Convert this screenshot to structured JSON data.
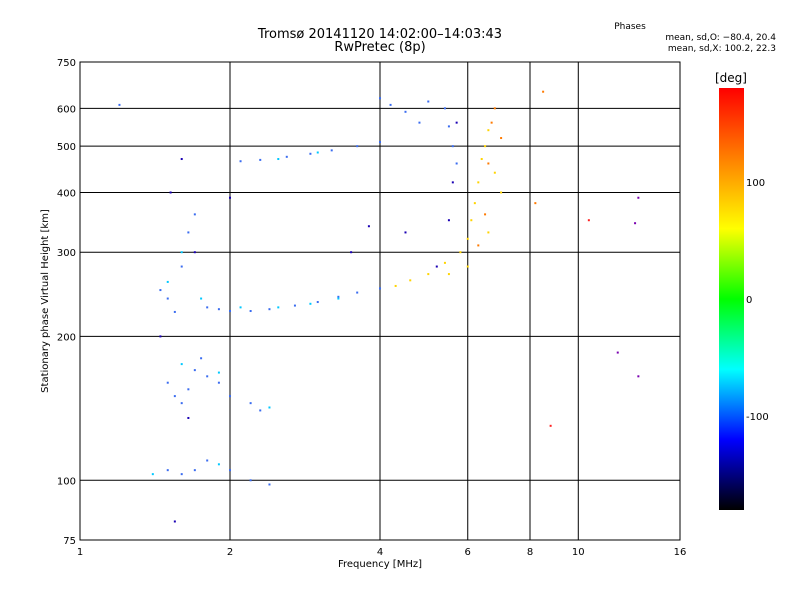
{
  "header": {
    "title_line1": "Tromsø 20141120 14:02:00–14:03:43",
    "title_line2": "RwPretec (8p)",
    "stats_title": "Phases",
    "stats_o": "mean, sd,O: −80.4, 20.4",
    "stats_x": "mean, sd,X: 100.2, 22.3"
  },
  "chart_data": {
    "type": "scatter",
    "xlabel": "Frequency [MHz]",
    "ylabel": "Stationary phase Virtual Height [km]",
    "x_scale": "log",
    "y_scale": "log",
    "xlim": [
      1,
      16
    ],
    "ylim": [
      75,
      750
    ],
    "x_ticks": [
      1,
      2,
      4,
      6,
      8,
      10,
      16
    ],
    "y_ticks": [
      75,
      100,
      200,
      300,
      400,
      500,
      600,
      750
    ],
    "x_grid": [
      2,
      4,
      6,
      8,
      10
    ],
    "y_grid": [
      100,
      200,
      300,
      400,
      500,
      600
    ],
    "colorbar": {
      "label": "[deg]",
      "range": [
        -180,
        180
      ],
      "ticks": [
        100,
        0,
        -100
      ],
      "colors_top_to_bottom": [
        "#ff0000",
        "#ff8000",
        "#ffff00",
        "#00ff00",
        "#00ffff",
        "#0000ff",
        "#000000"
      ]
    },
    "series": [
      {
        "color": "#3a6cf0",
        "points": [
          [
            1.2,
            610
          ],
          [
            1.45,
            250
          ],
          [
            1.5,
            240
          ],
          [
            1.55,
            225
          ],
          [
            1.6,
            280
          ],
          [
            1.65,
            330
          ],
          [
            1.7,
            360
          ],
          [
            1.8,
            230
          ],
          [
            1.9,
            228
          ],
          [
            2.0,
            226
          ],
          [
            2.2,
            226
          ],
          [
            2.4,
            228
          ],
          [
            2.7,
            232
          ],
          [
            3.0,
            236
          ],
          [
            3.3,
            242
          ],
          [
            3.6,
            247
          ],
          [
            4.0,
            252
          ],
          [
            1.5,
            160
          ],
          [
            1.55,
            150
          ],
          [
            1.6,
            145
          ],
          [
            1.65,
            155
          ],
          [
            1.7,
            170
          ],
          [
            1.75,
            180
          ],
          [
            1.8,
            165
          ],
          [
            1.9,
            160
          ],
          [
            2.0,
            150
          ],
          [
            2.2,
            145
          ],
          [
            2.3,
            140
          ],
          [
            1.5,
            105
          ],
          [
            1.6,
            103
          ],
          [
            1.7,
            105
          ],
          [
            1.8,
            110
          ],
          [
            2.0,
            105
          ],
          [
            2.2,
            100
          ],
          [
            2.4,
            98
          ],
          [
            2.1,
            465
          ],
          [
            2.3,
            468
          ],
          [
            2.6,
            475
          ],
          [
            2.9,
            482
          ],
          [
            3.2,
            490
          ],
          [
            3.6,
            500
          ],
          [
            4.0,
            510
          ],
          [
            4.0,
            630
          ],
          [
            4.2,
            610
          ],
          [
            4.5,
            590
          ],
          [
            4.8,
            560
          ],
          [
            5.0,
            620
          ],
          [
            5.4,
            600
          ],
          [
            5.5,
            550
          ],
          [
            5.6,
            500
          ],
          [
            5.7,
            460
          ]
        ]
      },
      {
        "color": "#00c8ff",
        "points": [
          [
            1.5,
            260
          ],
          [
            1.6,
            300
          ],
          [
            1.75,
            240
          ],
          [
            2.1,
            230
          ],
          [
            2.5,
            230
          ],
          [
            2.9,
            234
          ],
          [
            3.3,
            240
          ],
          [
            1.6,
            175
          ],
          [
            1.9,
            168
          ],
          [
            2.4,
            142
          ],
          [
            1.4,
            103
          ],
          [
            1.9,
            108
          ],
          [
            2.5,
            470
          ],
          [
            3.0,
            485
          ]
        ]
      },
      {
        "color": "#1a00b4",
        "points": [
          [
            1.45,
            200
          ],
          [
            1.52,
            400
          ],
          [
            1.6,
            470
          ],
          [
            1.7,
            300
          ],
          [
            2.0,
            390
          ],
          [
            3.5,
            300
          ],
          [
            3.8,
            340
          ],
          [
            4.5,
            330
          ],
          [
            5.2,
            280
          ],
          [
            5.5,
            350
          ],
          [
            5.6,
            420
          ],
          [
            5.7,
            560
          ],
          [
            1.55,
            82
          ],
          [
            1.65,
            135
          ]
        ]
      },
      {
        "color": "#ffd400",
        "points": [
          [
            4.3,
            255
          ],
          [
            4.6,
            262
          ],
          [
            5.0,
            270
          ],
          [
            5.4,
            285
          ],
          [
            5.8,
            300
          ],
          [
            6.0,
            320
          ],
          [
            6.1,
            350
          ],
          [
            6.2,
            380
          ],
          [
            6.3,
            420
          ],
          [
            6.4,
            470
          ],
          [
            6.5,
            500
          ],
          [
            6.6,
            540
          ],
          [
            6.8,
            440
          ],
          [
            7.0,
            400
          ],
          [
            6.6,
            330
          ],
          [
            6.0,
            280
          ],
          [
            5.5,
            270
          ]
        ]
      },
      {
        "color": "#ff7a00",
        "points": [
          [
            6.3,
            310
          ],
          [
            6.5,
            360
          ],
          [
            6.6,
            460
          ],
          [
            6.7,
            560
          ],
          [
            6.8,
            600
          ],
          [
            7.0,
            520
          ],
          [
            8.5,
            650
          ],
          [
            8.2,
            380
          ]
        ]
      },
      {
        "color": "#7a00b0",
        "points": [
          [
            13.2,
            165
          ],
          [
            12.0,
            185
          ],
          [
            13.2,
            390
          ],
          [
            13.0,
            345
          ]
        ]
      },
      {
        "color": "#ff2020",
        "points": [
          [
            10.5,
            350
          ],
          [
            8.8,
            130
          ]
        ]
      }
    ]
  }
}
